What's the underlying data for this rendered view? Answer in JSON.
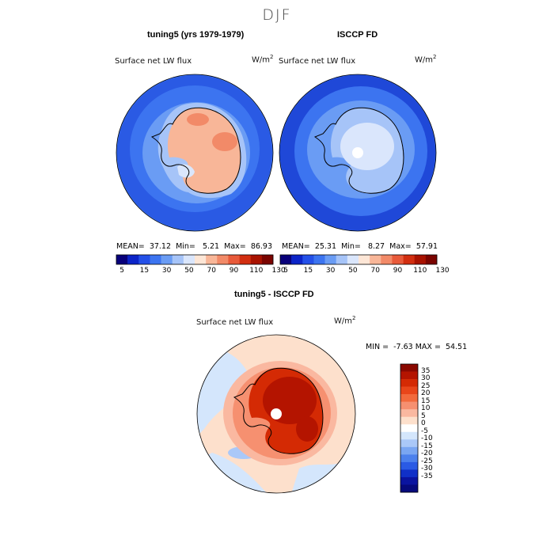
{
  "title": "DJF",
  "panels": [
    {
      "title": "tuning5 (yrs 1979-1979)",
      "variable": "Surface net LW flux",
      "units_base": "W/m",
      "units_exp": "2",
      "mean_label": "MEAN=",
      "mean": "37.12",
      "min_label": "Min=",
      "min": "5.21",
      "max_label": "Max=",
      "max": "86.93"
    },
    {
      "title": "ISCCP FD",
      "variable": "Surface net LW flux",
      "units_base": "W/m",
      "units_exp": "2",
      "mean_label": "MEAN=",
      "mean": "25.31",
      "min_label": "Min=",
      "min": "8.27",
      "max_label": "Max=",
      "max": "57.91"
    }
  ],
  "shared_colorbar": {
    "tick_labels": [
      "5",
      "15",
      "30",
      "50",
      "70",
      "90",
      "110",
      "130"
    ],
    "colors": [
      "#08007a",
      "#0c24c8",
      "#2450e8",
      "#3c74f0",
      "#6a9cf4",
      "#a6c4f8",
      "#dae6fc",
      "#fde6d6",
      "#f8b698",
      "#f28a68",
      "#e85a3a",
      "#d22e10",
      "#a81200",
      "#7a0400"
    ]
  },
  "diff_panel": {
    "title": "tuning5 - ISCCP FD",
    "variable": "Surface net LW flux",
    "units_base": "W/m",
    "units_exp": "2",
    "stats_text": "MIN =  -7.63 MAX =  54.51",
    "colorbar": {
      "tick_labels": [
        "35",
        "30",
        "25",
        "20",
        "15",
        "10",
        "5",
        "0",
        "-5",
        "-10",
        "-15",
        "-20",
        "-25",
        "-30",
        "-35"
      ],
      "colors": [
        "#8a0800",
        "#b41400",
        "#d42a04",
        "#e8461a",
        "#f26a3c",
        "#f69070",
        "#fab8a0",
        "#fde0cc",
        "#ffffff",
        "#d4e6fc",
        "#aac8f8",
        "#7aa6f2",
        "#4c80ec",
        "#2a5ae4",
        "#1030c8",
        "#0a14a0",
        "#060a7c"
      ]
    }
  }
}
